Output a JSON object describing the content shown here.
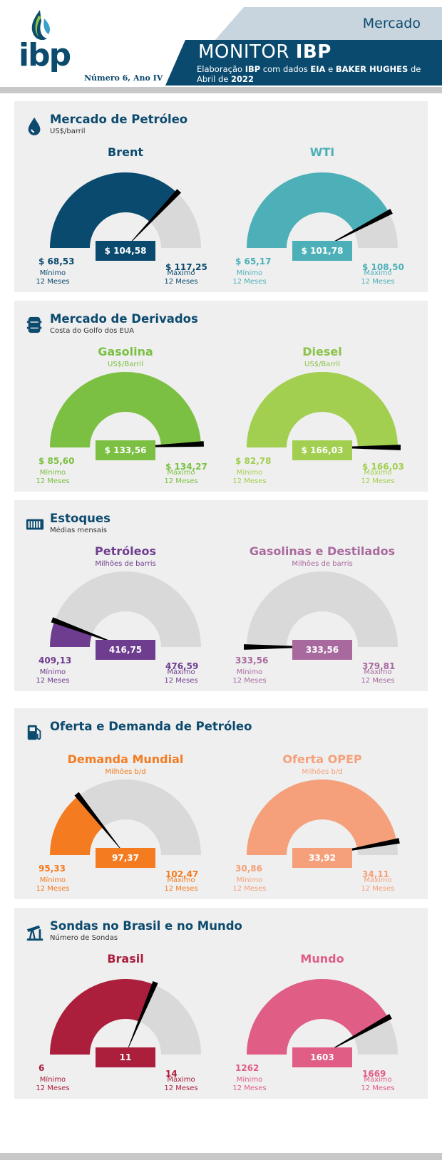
{
  "header": {
    "mercado": "Mercado",
    "title_normal": "MONITOR",
    "title_bold": "IBP",
    "subtitle_line1_a": "Elaboração",
    "subtitle_line1_b": "IBP",
    "subtitle_line1_c": "com dados",
    "subtitle_line1_d": "EIA",
    "subtitle_line1_e": "e",
    "subtitle_line1_f": "BAKER HUGHES",
    "subtitle_line1_g": "de",
    "subtitle_line2_a": "Abril de",
    "subtitle_line2_b": "2022",
    "issue": "Número 6, Ano IV",
    "logo": "ibp"
  },
  "labels": {
    "min": "Mínimo",
    "max": "Máximo",
    "period": "12 Meses"
  },
  "colors": {
    "navy": "#0c4a6e",
    "gray_track": "#d9d9d9",
    "panel": "#efefef"
  },
  "chart_data": [
    {
      "type": "gauge",
      "section": "Mercado de Petróleo",
      "section_subtitle": "US$/barril",
      "section_icon": "oil-drop-icon",
      "gauges": [
        {
          "title": "Brent",
          "unit": "",
          "value": 104.58,
          "min": 68.53,
          "max": 117.25,
          "value_label": "$ 104,58",
          "min_label": "$ 68,53",
          "max_label": "$ 117,25",
          "color": "#0a4a6e",
          "title_color": "#0a4a6e"
        },
        {
          "title": "WTI",
          "unit": "",
          "value": 101.78,
          "min": 65.17,
          "max": 108.5,
          "value_label": "$ 101,78",
          "min_label": "$ 65,17",
          "max_label": "$ 108,50",
          "color": "#4db0b8",
          "title_color": "#4db0b8"
        }
      ]
    },
    {
      "type": "gauge",
      "section": "Mercado de Derivados",
      "section_subtitle": "Costa do Golfo dos EUA",
      "section_icon": "barrel-icon",
      "gauges": [
        {
          "title": "Gasolina",
          "unit": "US$/Barril",
          "value": 133.56,
          "min": 85.6,
          "max": 134.27,
          "value_label": "$ 133,56",
          "min_label": "$ 85,60",
          "max_label": "$ 134,27",
          "color": "#7bc043",
          "title_color": "#7bc043"
        },
        {
          "title": "Diesel",
          "unit": "US$/Barril",
          "value": 166.03,
          "min": 82.78,
          "max": 166.03,
          "value_label": "$ 166,03",
          "min_label": "$ 82,78",
          "max_label": "$ 166,03",
          "color": "#a2cf4f",
          "title_color": "#8bc34a"
        }
      ]
    },
    {
      "type": "gauge",
      "section": "Estoques",
      "section_subtitle": "Médias mensais",
      "section_icon": "storage-tank-icon",
      "gauges": [
        {
          "title": "Petróleos",
          "unit": "Milhões de barris",
          "value": 416.75,
          "min": 409.13,
          "max": 476.59,
          "value_label": "416,75",
          "min_label": "409,13",
          "max_label": "476,59",
          "color": "#6f3d8f",
          "title_color": "#6f3d8f"
        },
        {
          "title": "Gasolinas e Destilados",
          "unit": "Milhões de barris",
          "value": 333.56,
          "min": 333.56,
          "max": 379.81,
          "value_label": "333,56",
          "min_label": "333,56",
          "max_label": "379,81",
          "color": "#a8699e",
          "title_color": "#a8699e"
        }
      ]
    },
    {
      "type": "gauge",
      "section": "Oferta e Demanda de Petróleo",
      "section_subtitle": "",
      "section_icon": "fuel-pump-icon",
      "gauges": [
        {
          "title": "Demanda Mundial",
          "unit": "Milhões b/d",
          "value": 97.37,
          "min": 95.33,
          "max": 102.47,
          "value_label": "97,37",
          "min_label": "95,33",
          "max_label": "102,47",
          "color": "#f47b20",
          "title_color": "#f47b20"
        },
        {
          "title": "Oferta OPEP",
          "unit": "Milhões b/d",
          "value": 33.92,
          "min": 30.86,
          "max": 34.11,
          "value_label": "33,92",
          "min_label": "30,86",
          "max_label": "34,11",
          "color": "#f5a07a",
          "title_color": "#f5a07a"
        }
      ]
    },
    {
      "type": "gauge",
      "section": "Sondas no Brasil e no Mundo",
      "section_subtitle": "Número de Sondas",
      "section_icon": "oil-pump-jack-icon",
      "gauges": [
        {
          "title": "Brasil",
          "unit": "",
          "value": 11,
          "min": 6,
          "max": 14,
          "value_label": "11",
          "min_label": "6",
          "max_label": "14",
          "color": "#ab1e3c",
          "title_color": "#ab1e3c"
        },
        {
          "title": "Mundo",
          "unit": "",
          "value": 1603,
          "min": 1262,
          "max": 1669,
          "value_label": "1603",
          "min_label": "1262",
          "max_label": "1669",
          "color": "#e05e86",
          "title_color": "#e05e86"
        }
      ]
    }
  ]
}
